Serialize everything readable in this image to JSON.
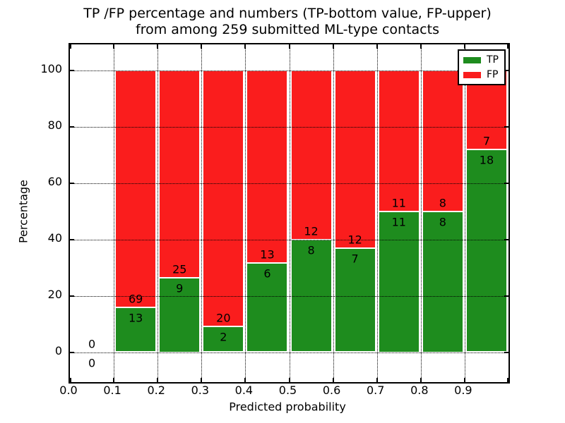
{
  "figure": {
    "title_line1": "TP /FP percentage and numbers (TP-bottom value, FP-upper)",
    "title_line2": "from among 259 submitted ML-type contacts",
    "background_color": "#ffffff"
  },
  "chart_data": {
    "type": "bar",
    "stacked": true,
    "normalized_to_percent": true,
    "title": "TP /FP percentage and numbers (TP-bottom value, FP-upper) from among 259 submitted ML-type contacts",
    "xlabel": "Predicted probability",
    "ylabel": "Percentage",
    "total_contacts": 259,
    "xlim": [
      0.0,
      1.0
    ],
    "ylim": [
      -10.7,
      109.3
    ],
    "x_tick_values": [
      0.0,
      0.1,
      0.2,
      0.3,
      0.4,
      0.5,
      0.6,
      0.7,
      0.8,
      0.9
    ],
    "x_tick_labels": [
      "0.0",
      "0.1",
      "0.2",
      "0.3",
      "0.4",
      "0.5",
      "0.6",
      "0.7",
      "0.8",
      "0.9"
    ],
    "x_tick_marks": [
      0.0,
      0.1,
      0.2,
      0.3,
      0.4,
      0.5,
      0.6,
      0.7,
      0.8,
      0.9,
      1.0
    ],
    "y_ticks": [
      0,
      20,
      40,
      60,
      80,
      100
    ],
    "grid_style": "dotted",
    "grid_x": [
      0.1,
      0.2,
      0.3,
      0.4,
      0.5,
      0.6,
      0.7,
      0.8,
      0.9
    ],
    "bar_edge_color": "#ffffff",
    "colors": {
      "tp": "#1e8c1e",
      "fp": "#fa1d1d"
    },
    "legend": {
      "position": "upper right",
      "entries": [
        {
          "label": "TP",
          "color": "#1e8c1e"
        },
        {
          "label": "FP",
          "color": "#fa1d1d"
        }
      ]
    },
    "label_note": "FP count printed just above TP/FP boundary, TP count just below it",
    "bins": [
      {
        "x_start": 0.0,
        "x_end": 0.1,
        "tp": 0,
        "fp": 0,
        "tp_pct": 0.0,
        "fp_pct": 0.0
      },
      {
        "x_start": 0.1,
        "x_end": 0.2,
        "tp": 13,
        "fp": 69,
        "tp_pct": 15.85,
        "fp_pct": 84.15
      },
      {
        "x_start": 0.2,
        "x_end": 0.3,
        "tp": 9,
        "fp": 25,
        "tp_pct": 26.47,
        "fp_pct": 73.53
      },
      {
        "x_start": 0.3,
        "x_end": 0.4,
        "tp": 2,
        "fp": 20,
        "tp_pct": 9.09,
        "fp_pct": 90.91
      },
      {
        "x_start": 0.4,
        "x_end": 0.5,
        "tp": 6,
        "fp": 13,
        "tp_pct": 31.58,
        "fp_pct": 68.42
      },
      {
        "x_start": 0.5,
        "x_end": 0.6,
        "tp": 8,
        "fp": 12,
        "tp_pct": 40.0,
        "fp_pct": 60.0
      },
      {
        "x_start": 0.6,
        "x_end": 0.7,
        "tp": 7,
        "fp": 12,
        "tp_pct": 36.84,
        "fp_pct": 63.16
      },
      {
        "x_start": 0.7,
        "x_end": 0.8,
        "tp": 11,
        "fp": 11,
        "tp_pct": 50.0,
        "fp_pct": 50.0
      },
      {
        "x_start": 0.8,
        "x_end": 0.9,
        "tp": 8,
        "fp": 8,
        "tp_pct": 50.0,
        "fp_pct": 50.0
      },
      {
        "x_start": 0.9,
        "x_end": 1.0,
        "tp": 18,
        "fp": 7,
        "tp_pct": 72.0,
        "fp_pct": 28.0
      }
    ]
  }
}
